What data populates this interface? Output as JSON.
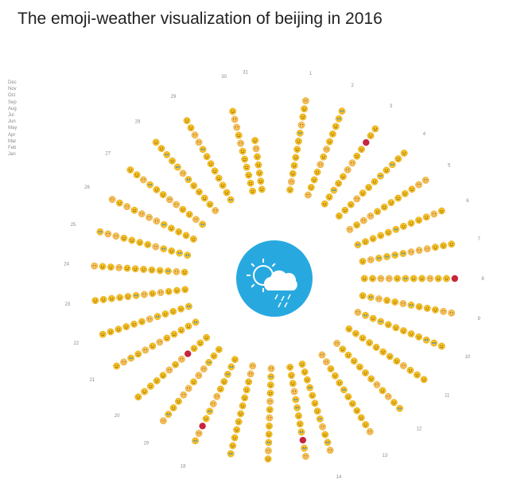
{
  "title": "The emoji-weather visualization of beijing in 2016",
  "months": [
    "Dec",
    "Nov",
    "Oct",
    "Sep",
    "Aug",
    "Jul",
    "Jun",
    "May",
    "Apr",
    "Mar",
    "Feb",
    "Jan"
  ],
  "colors": {
    "sunny": "#f5c024",
    "emoji_outline": "#d59a12",
    "haze_face": "#f7c15a",
    "haze_dots": "#e08a5a",
    "cry_tear": "#5aa6d8",
    "snow_red": "#c8243e",
    "center_circle": "#27a9e0",
    "center_icon": "#ffffff"
  },
  "chart_data": {
    "type": "radial-emoji",
    "title": "The emoji-weather visualization of beijing in 2016",
    "day_labels": [
      "1",
      "2",
      "3",
      "4",
      "5",
      "6",
      "7",
      "8",
      "9",
      "10",
      "11",
      "12",
      "13",
      "14",
      "18",
      "19",
      "20",
      "21",
      "22",
      "23",
      "24",
      "25",
      "26",
      "27",
      "28",
      "29",
      "30",
      "31"
    ],
    "legend_months": [
      "Dec",
      "Nov",
      "Oct",
      "Sep",
      "Aug",
      "Jul",
      "Jun",
      "May",
      "Apr",
      "Mar",
      "Feb",
      "Jan"
    ],
    "center_icon": "sun-cloud-rain-icon",
    "weather_codes": {
      "s": "sunny",
      "h": "hazy",
      "c": "crying",
      "r": "snow"
    }
  }
}
